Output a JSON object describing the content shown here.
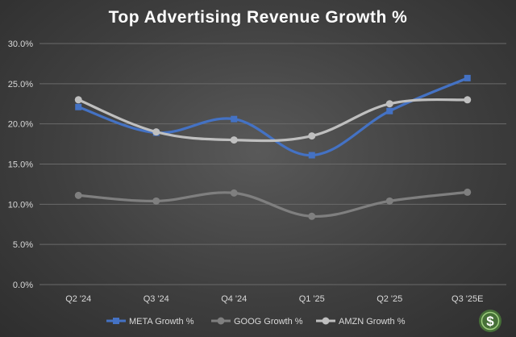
{
  "chart_data": {
    "type": "line",
    "title": "Top Advertising Revenue Growth %",
    "xlabel": "",
    "ylabel": "",
    "categories": [
      "Q2 '24",
      "Q3 '24",
      "Q4 '24",
      "Q1 '25",
      "Q2 '25",
      "Q3 '25E"
    ],
    "ylim": [
      0,
      30
    ],
    "yticks": [
      0,
      5,
      10,
      15,
      20,
      25,
      30
    ],
    "ytick_labels": [
      "0.0%",
      "5.0%",
      "10.0%",
      "15.0%",
      "20.0%",
      "25.0%",
      "30.0%"
    ],
    "grid": true,
    "legend_position": "bottom",
    "series": [
      {
        "name": "META Growth %",
        "color": "#4472c4",
        "marker": "square",
        "values": [
          22.1,
          18.9,
          20.6,
          16.1,
          21.6,
          25.7
        ]
      },
      {
        "name": "GOOG Growth %",
        "color": "#7f7f7f",
        "marker": "circle",
        "values": [
          11.1,
          10.4,
          11.4,
          8.5,
          10.4,
          11.5
        ]
      },
      {
        "name": "AMZN Growth %",
        "color": "#bfbfbf",
        "marker": "circle",
        "values": [
          23.0,
          19.0,
          18.0,
          18.5,
          22.5,
          23.0
        ]
      }
    ],
    "watermark_icon": "dollar-badge-icon"
  }
}
